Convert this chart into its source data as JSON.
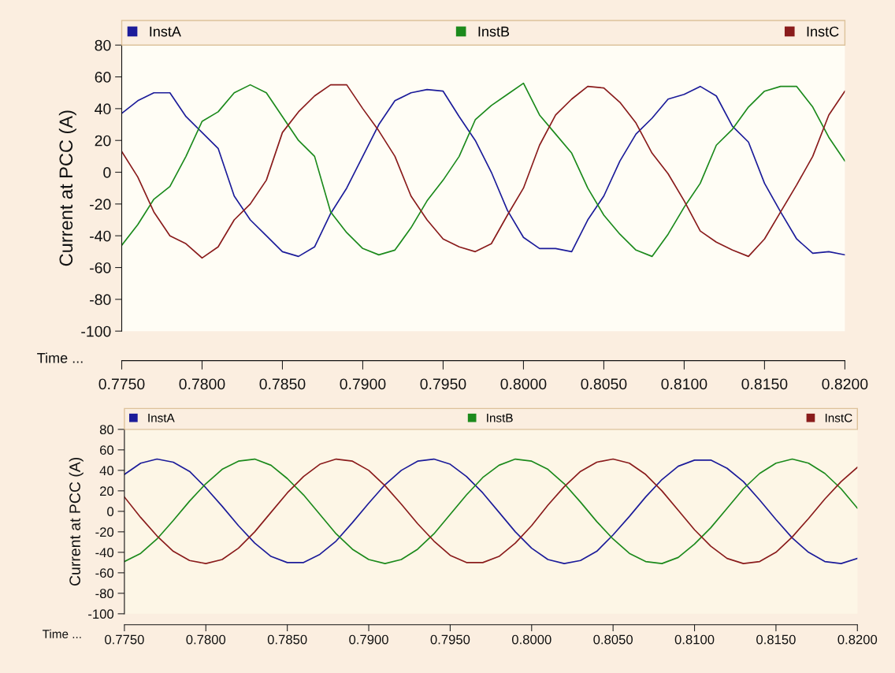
{
  "chart_data": [
    {
      "type": "line",
      "xlabel": "Time ...",
      "ylabel": "Current at PCC (A)",
      "legend": "top",
      "grid": false,
      "x": [
        0.775,
        0.776,
        0.777,
        0.778,
        0.779,
        0.78,
        0.781,
        0.782,
        0.783,
        0.784,
        0.785,
        0.786,
        0.787,
        0.788,
        0.789,
        0.79,
        0.791,
        0.792,
        0.793,
        0.794,
        0.795,
        0.796,
        0.797,
        0.798,
        0.799,
        0.8,
        0.801,
        0.802,
        0.803,
        0.804,
        0.805,
        0.806,
        0.807,
        0.808,
        0.809,
        0.81,
        0.811,
        0.812,
        0.813,
        0.814,
        0.815,
        0.816,
        0.817,
        0.818,
        0.819,
        0.82
      ],
      "series": [
        {
          "name": "InstA",
          "color": "#1c1c9a",
          "values": [
            37,
            45,
            50,
            50,
            35,
            25,
            15,
            -15,
            -30,
            -40,
            -50,
            -53,
            -47,
            -26,
            -10,
            10,
            30,
            45,
            50,
            52,
            51,
            35,
            20,
            0,
            -24,
            -41,
            -48,
            -48,
            -50,
            -30,
            -15,
            7,
            24,
            34,
            46,
            49,
            54,
            48,
            29,
            19,
            -7,
            -25,
            -42,
            -51,
            -50,
            -52
          ]
        },
        {
          "name": "InstB",
          "color": "#1c8a1c",
          "values": [
            -46,
            -33,
            -17,
            -9,
            10,
            32,
            38,
            50,
            55,
            50,
            35,
            20,
            10,
            -25,
            -38,
            -48,
            -52,
            -49,
            -35,
            -18,
            -5,
            10,
            33,
            42,
            49,
            56,
            36,
            24,
            12,
            -10,
            -27,
            -39,
            -49,
            -53,
            -39,
            -22,
            -7,
            17,
            27,
            41,
            51,
            54,
            54,
            41,
            22,
            7
          ]
        },
        {
          "name": "InstC",
          "color": "#8a1c1c",
          "values": [
            13,
            -3,
            -25,
            -40,
            -45,
            -54,
            -47,
            -30,
            -20,
            -5,
            25,
            38,
            48,
            55,
            55,
            40,
            26,
            10,
            -15,
            -30,
            -42,
            -47,
            -50,
            -45,
            -27,
            -10,
            17,
            36,
            46,
            54,
            53,
            44,
            31,
            12,
            -1,
            -18,
            -37,
            -44,
            -49,
            -53,
            -42,
            -25,
            -8,
            10,
            36,
            51
          ]
        }
      ],
      "xlim": [
        0.775,
        0.82
      ],
      "xticks": [
        {
          "value": 0.775,
          "label": "0.7750"
        },
        {
          "value": 0.78,
          "label": "0.7800"
        },
        {
          "value": 0.785,
          "label": "0.7850"
        },
        {
          "value": 0.79,
          "label": "0.7900"
        },
        {
          "value": 0.795,
          "label": "0.7950"
        },
        {
          "value": 0.8,
          "label": "0.8000"
        },
        {
          "value": 0.805,
          "label": "0.8050"
        },
        {
          "value": 0.81,
          "label": "0.8100"
        },
        {
          "value": 0.815,
          "label": "0.8150"
        },
        {
          "value": 0.82,
          "label": "0.8200"
        }
      ],
      "ylim": [
        -100,
        80
      ],
      "yticks": [
        -100,
        -80,
        -60,
        -40,
        -20,
        0,
        20,
        40,
        60,
        80
      ]
    },
    {
      "type": "line",
      "xlabel": "Time ...",
      "ylabel": "Current at PCC (A)",
      "legend": "top",
      "grid": false,
      "x": [
        0.775,
        0.776,
        0.777,
        0.778,
        0.779,
        0.78,
        0.781,
        0.782,
        0.783,
        0.784,
        0.785,
        0.786,
        0.787,
        0.788,
        0.789,
        0.79,
        0.791,
        0.792,
        0.793,
        0.794,
        0.795,
        0.796,
        0.797,
        0.798,
        0.799,
        0.8,
        0.801,
        0.802,
        0.803,
        0.804,
        0.805,
        0.806,
        0.807,
        0.808,
        0.809,
        0.81,
        0.811,
        0.812,
        0.813,
        0.814,
        0.815,
        0.816,
        0.817,
        0.818,
        0.819,
        0.82
      ],
      "series": [
        {
          "name": "InstA",
          "color": "#1c1c9a",
          "values": [
            36,
            47,
            51,
            48,
            39,
            23,
            5,
            -14,
            -31,
            -44,
            -50,
            -50,
            -42,
            -29,
            -11,
            8,
            26,
            40,
            49,
            51,
            46,
            34,
            18,
            -1,
            -20,
            -36,
            -47,
            -51,
            -48,
            -39,
            -23,
            -5,
            14,
            31,
            44,
            50,
            50,
            42,
            29,
            11,
            -8,
            -26,
            -40,
            -49,
            -51,
            -46
          ]
        },
        {
          "name": "InstB",
          "color": "#1c8a1c",
          "values": [
            -49,
            -41,
            -27,
            -9,
            10,
            27,
            41,
            49,
            51,
            45,
            32,
            16,
            -3,
            -22,
            -37,
            -47,
            -51,
            -47,
            -37,
            -22,
            -3,
            16,
            33,
            45,
            51,
            49,
            41,
            27,
            9,
            -10,
            -27,
            -41,
            -49,
            -51,
            -45,
            -32,
            -16,
            3,
            22,
            37,
            47,
            51,
            47,
            37,
            22,
            3
          ]
        },
        {
          "name": "InstC",
          "color": "#8a1c1c",
          "values": [
            14,
            -6,
            -24,
            -39,
            -48,
            -51,
            -47,
            -36,
            -20,
            -1,
            18,
            34,
            46,
            51,
            49,
            40,
            25,
            7,
            -12,
            -29,
            -43,
            -50,
            -50,
            -44,
            -31,
            -14,
            6,
            24,
            39,
            48,
            51,
            47,
            36,
            20,
            1,
            -18,
            -34,
            -46,
            -51,
            -49,
            -40,
            -25,
            -7,
            12,
            29,
            43
          ]
        }
      ],
      "xlim": [
        0.775,
        0.82
      ],
      "xticks": [
        {
          "value": 0.775,
          "label": "0.7750"
        },
        {
          "value": 0.78,
          "label": "0.7800"
        },
        {
          "value": 0.785,
          "label": "0.7850"
        },
        {
          "value": 0.79,
          "label": "0.7900"
        },
        {
          "value": 0.795,
          "label": "0.7950"
        },
        {
          "value": 0.8,
          "label": "0.8000"
        },
        {
          "value": 0.805,
          "label": "0.8050"
        },
        {
          "value": 0.81,
          "label": "0.8100"
        },
        {
          "value": 0.815,
          "label": "0.8150"
        },
        {
          "value": 0.82,
          "label": "0.8200"
        }
      ],
      "ylim": [
        -100,
        80
      ],
      "yticks": [
        -100,
        -80,
        -60,
        -40,
        -20,
        0,
        20,
        40,
        60,
        80
      ]
    }
  ]
}
